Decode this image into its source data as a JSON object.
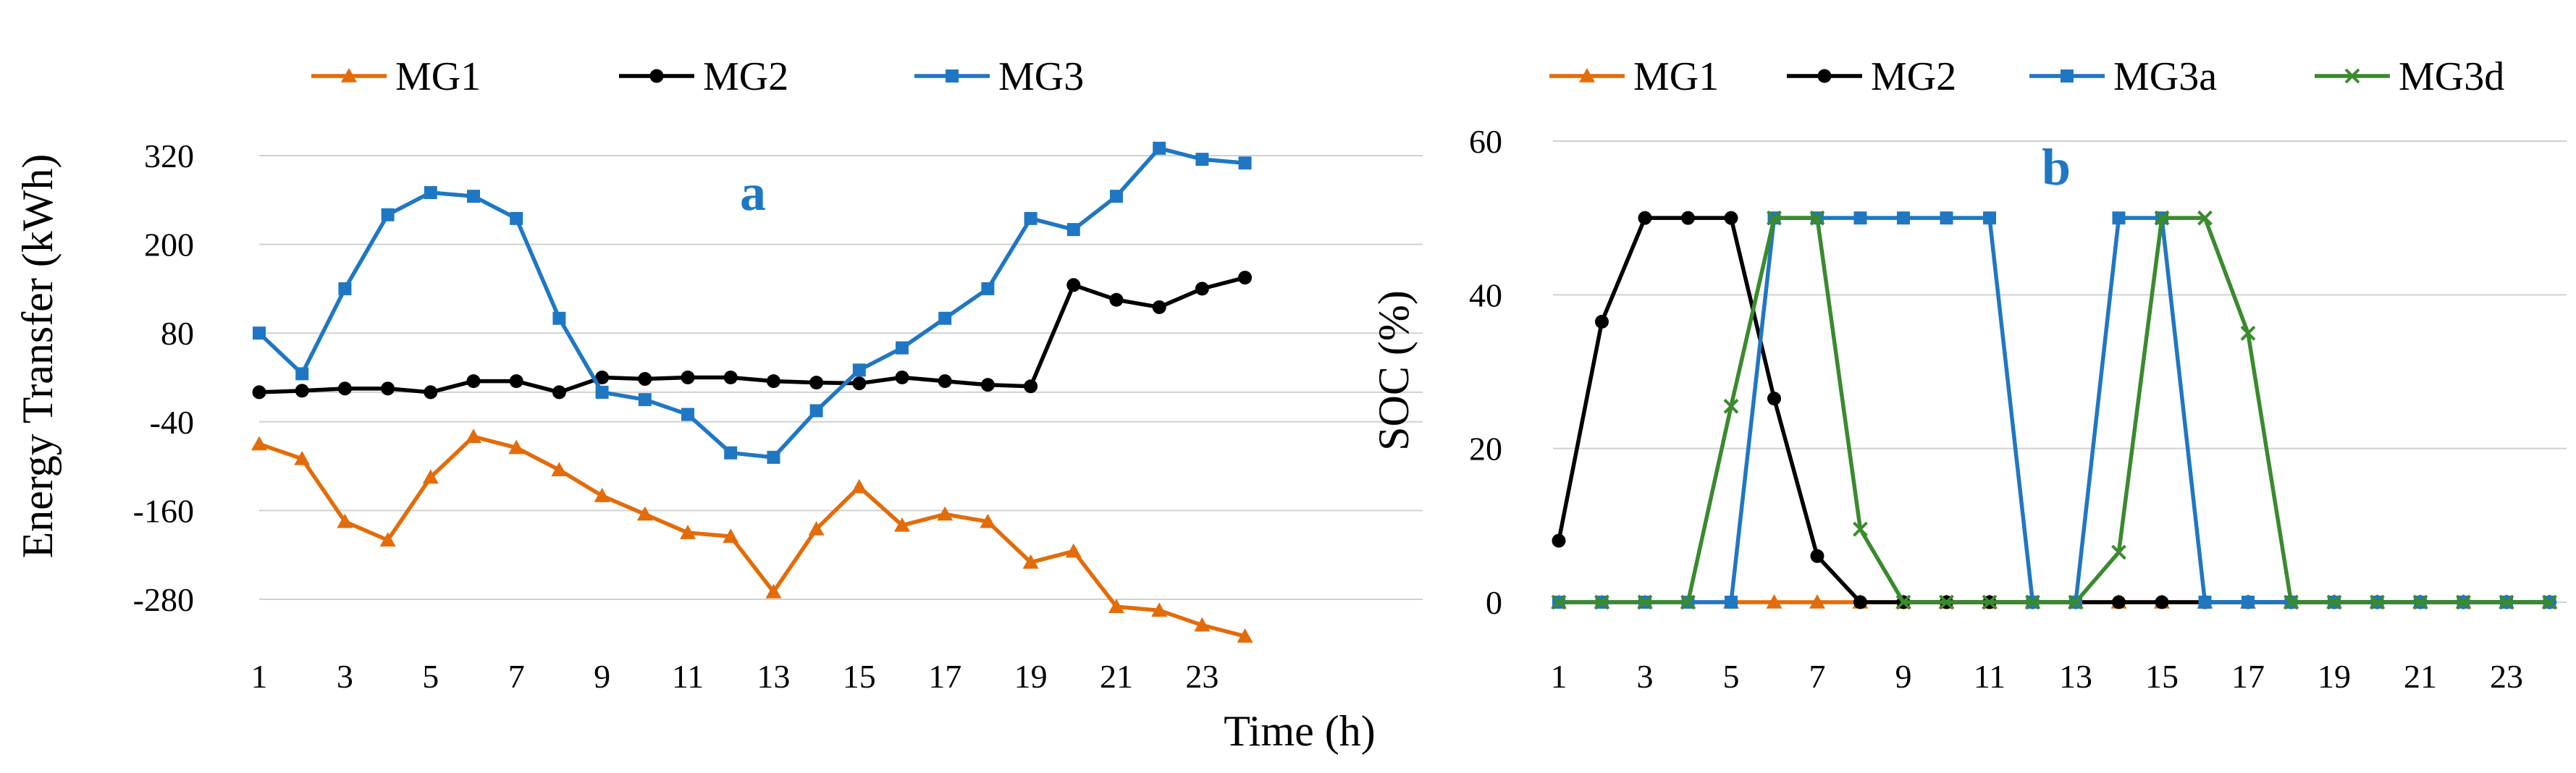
{
  "figure": {
    "shared_xlabel": "Time (h)"
  },
  "chart_data": [
    {
      "type": "line",
      "panel_label": "a",
      "ylabel": "Energy Transfer (kWh)",
      "xlabel": "",
      "ylim": [
        -280,
        320
      ],
      "yticks": [
        "320",
        "200",
        "80",
        "-40",
        "-160",
        "-280"
      ],
      "ytick_values": [
        320,
        200,
        80,
        -40,
        -160,
        -280
      ],
      "x": [
        1,
        2,
        3,
        4,
        5,
        6,
        7,
        8,
        9,
        10,
        11,
        12,
        13,
        14,
        15,
        16,
        17,
        18,
        19,
        20,
        21,
        22,
        23,
        24
      ],
      "xticks": [
        "1",
        "3",
        "5",
        "7",
        "9",
        "11",
        "13",
        "15",
        "17",
        "19",
        "21",
        "23"
      ],
      "xtick_values": [
        1,
        3,
        5,
        7,
        9,
        11,
        13,
        15,
        17,
        19,
        21,
        23
      ],
      "gridlines": true,
      "legend_position": "top",
      "series": [
        {
          "name": "MG1",
          "color": "#e36c0a",
          "marker": "triangle",
          "values": [
            -70,
            -90,
            -175,
            -200,
            -115,
            -60,
            -75,
            -105,
            -140,
            -165,
            -190,
            -195,
            -270,
            -185,
            -128,
            -180,
            -165,
            -175,
            -230,
            -215,
            -290,
            -295,
            -315,
            -330
          ]
        },
        {
          "name": "MG2",
          "color": "#000000",
          "marker": "circle",
          "values": [
            0,
            2,
            5,
            5,
            0,
            15,
            15,
            0,
            20,
            18,
            20,
            20,
            15,
            13,
            12,
            20,
            15,
            10,
            8,
            145,
            125,
            115,
            140,
            155
          ]
        },
        {
          "name": "MG3",
          "color": "#1f77c4",
          "marker": "square",
          "values": [
            80,
            25,
            140,
            240,
            270,
            265,
            235,
            100,
            0,
            -10,
            -30,
            -82,
            -88,
            -25,
            30,
            60,
            100,
            140,
            235,
            220,
            265,
            330,
            315,
            310
          ]
        }
      ]
    },
    {
      "type": "line",
      "panel_label": "b",
      "ylabel": "SOC (%)",
      "xlabel": "",
      "ylim": [
        0,
        60
      ],
      "yticks": [
        "60",
        "40",
        "20",
        "0"
      ],
      "ytick_values": [
        60,
        40,
        20,
        0
      ],
      "x": [
        1,
        2,
        3,
        4,
        5,
        6,
        7,
        8,
        9,
        10,
        11,
        12,
        13,
        14,
        15,
        16,
        17,
        18,
        19,
        20,
        21,
        22,
        23,
        24
      ],
      "xticks": [
        "1",
        "3",
        "5",
        "7",
        "9",
        "11",
        "13",
        "15",
        "17",
        "19",
        "21",
        "23"
      ],
      "xtick_values": [
        1,
        3,
        5,
        7,
        9,
        11,
        13,
        15,
        17,
        19,
        21,
        23
      ],
      "gridlines": true,
      "legend_position": "top",
      "series": [
        {
          "name": "MG1",
          "color": "#e36c0a",
          "marker": "triangle",
          "values": [
            0,
            0,
            0,
            0,
            0,
            0,
            0,
            0,
            0,
            0,
            0,
            0,
            0,
            0,
            0,
            0,
            0,
            0,
            0,
            0,
            0,
            0,
            0,
            0
          ]
        },
        {
          "name": "MG2",
          "color": "#000000",
          "marker": "circle",
          "values": [
            8,
            36.5,
            50,
            50,
            50,
            26.5,
            6,
            0,
            0,
            0,
            0,
            0,
            0,
            0,
            0,
            0,
            0,
            0,
            0,
            0,
            0,
            0,
            0,
            0
          ]
        },
        {
          "name": "MG3a",
          "color": "#1f77c4",
          "marker": "square",
          "values": [
            0,
            0,
            0,
            0,
            0,
            50,
            50,
            50,
            50,
            50,
            50,
            0,
            0,
            50,
            50,
            0,
            0,
            0,
            0,
            0,
            0,
            0,
            0,
            0
          ]
        },
        {
          "name": "MG3d",
          "color": "#3a8a2e",
          "marker": "x",
          "values": [
            0,
            0,
            0,
            0,
            25.5,
            50,
            50,
            9.5,
            0,
            0,
            0,
            0,
            0,
            6.5,
            50,
            50,
            35,
            0,
            0,
            0,
            0,
            0,
            0,
            0
          ]
        }
      ]
    }
  ]
}
